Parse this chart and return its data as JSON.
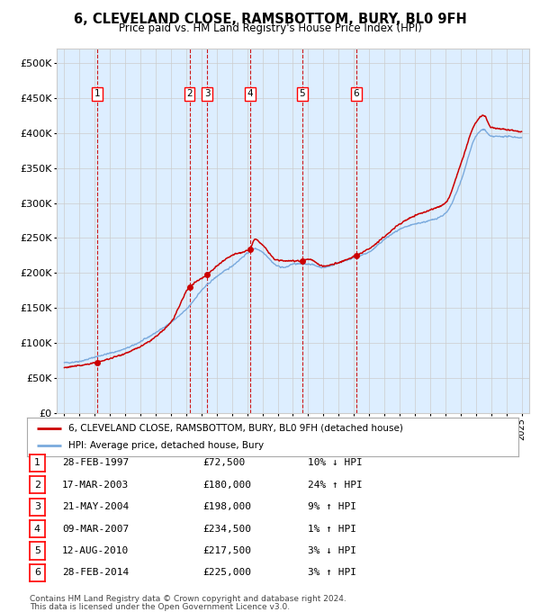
{
  "title": "6, CLEVELAND CLOSE, RAMSBOTTOM, BURY, BL0 9FH",
  "subtitle": "Price paid vs. HM Land Registry's House Price Index (HPI)",
  "hpi_color": "#7aaadd",
  "price_color": "#cc0000",
  "bg_color": "#ddeeff",
  "plot_bg": "#ffffff",
  "grid_color": "#cccccc",
  "sale_dates_x": [
    1997.15,
    2003.21,
    2004.38,
    2007.18,
    2010.61,
    2014.15
  ],
  "sale_prices_y": [
    72500,
    180000,
    198000,
    234500,
    217500,
    225000
  ],
  "sale_labels": [
    "1",
    "2",
    "3",
    "4",
    "5",
    "6"
  ],
  "sale_date_strs": [
    "28-FEB-1997",
    "17-MAR-2003",
    "21-MAY-2004",
    "09-MAR-2007",
    "12-AUG-2010",
    "28-FEB-2014"
  ],
  "sale_price_strs": [
    "£72,500",
    "£180,000",
    "£198,000",
    "£234,500",
    "£217,500",
    "£225,000"
  ],
  "sale_hpi_strs": [
    "10% ↓ HPI",
    "24% ↑ HPI",
    "9% ↑ HPI",
    "1% ↑ HPI",
    "3% ↓ HPI",
    "3% ↑ HPI"
  ],
  "ylabel_ticks": [
    0,
    50000,
    100000,
    150000,
    200000,
    250000,
    300000,
    350000,
    400000,
    450000,
    500000
  ],
  "ylabel_labels": [
    "£0",
    "£50K",
    "£100K",
    "£150K",
    "£200K",
    "£250K",
    "£300K",
    "£350K",
    "£400K",
    "£450K",
    "£500K"
  ],
  "xlim": [
    1994.5,
    2025.5
  ],
  "ylim": [
    0,
    520000
  ],
  "legend_line1": "6, CLEVELAND CLOSE, RAMSBOTTOM, BURY, BL0 9FH (detached house)",
  "legend_line2": "HPI: Average price, detached house, Bury",
  "footer_line1": "Contains HM Land Registry data © Crown copyright and database right 2024.",
  "footer_line2": "This data is licensed under the Open Government Licence v3.0."
}
